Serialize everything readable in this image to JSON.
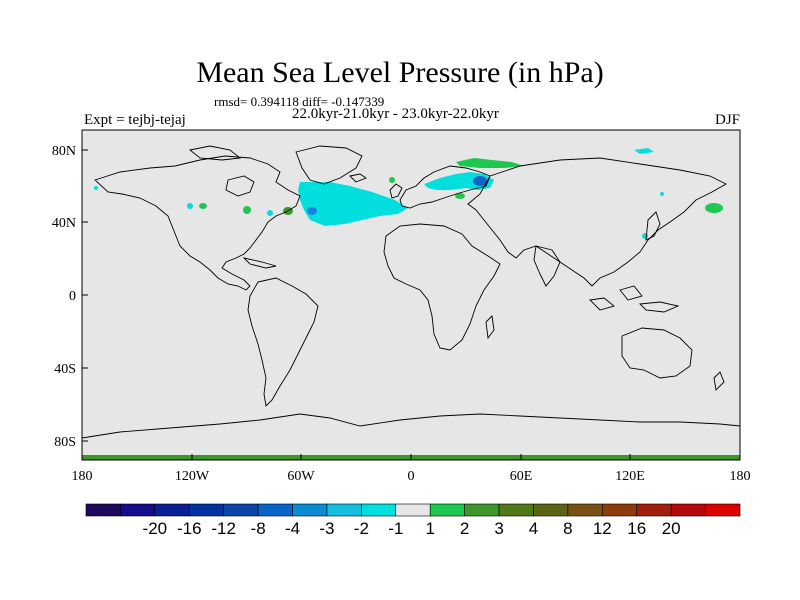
{
  "title": "Mean Sea Level Pressure (in hPa)",
  "stats": "rmsd= 0.394118 diff= -0.147339",
  "period": "22.0kyr-21.0kyr - 23.0kyr-22.0kyr",
  "experiment": "Expt = tejbj-tejaj",
  "season": "DJF",
  "colors": {
    "background_field": "#e6e6e6",
    "coast": "#000000"
  },
  "axes": {
    "lon_labels": [
      "180",
      "120W",
      "60W",
      "0",
      "60E",
      "120E",
      "180"
    ],
    "lat_labels": [
      "80N",
      "40N",
      "0",
      "40S",
      "80S"
    ]
  },
  "colorbar": {
    "colors": [
      "#1e0a5a",
      "#140c8c",
      "#0a1e96",
      "#0032a0",
      "#0a46aa",
      "#0a64c8",
      "#0a8cd2",
      "#14bede",
      "#00dede",
      "#e6e6e6",
      "#1ec850",
      "#3c9628",
      "#507819",
      "#5a6414",
      "#785014",
      "#8c3c0a",
      "#a01e0a",
      "#b40a0a",
      "#dc0000"
    ],
    "labels": [
      "-20",
      "-16",
      "-12",
      "-8",
      "-4",
      "-3",
      "-2",
      "-1",
      "1",
      "2",
      "3",
      "4",
      "8",
      "12",
      "16",
      "20"
    ]
  }
}
